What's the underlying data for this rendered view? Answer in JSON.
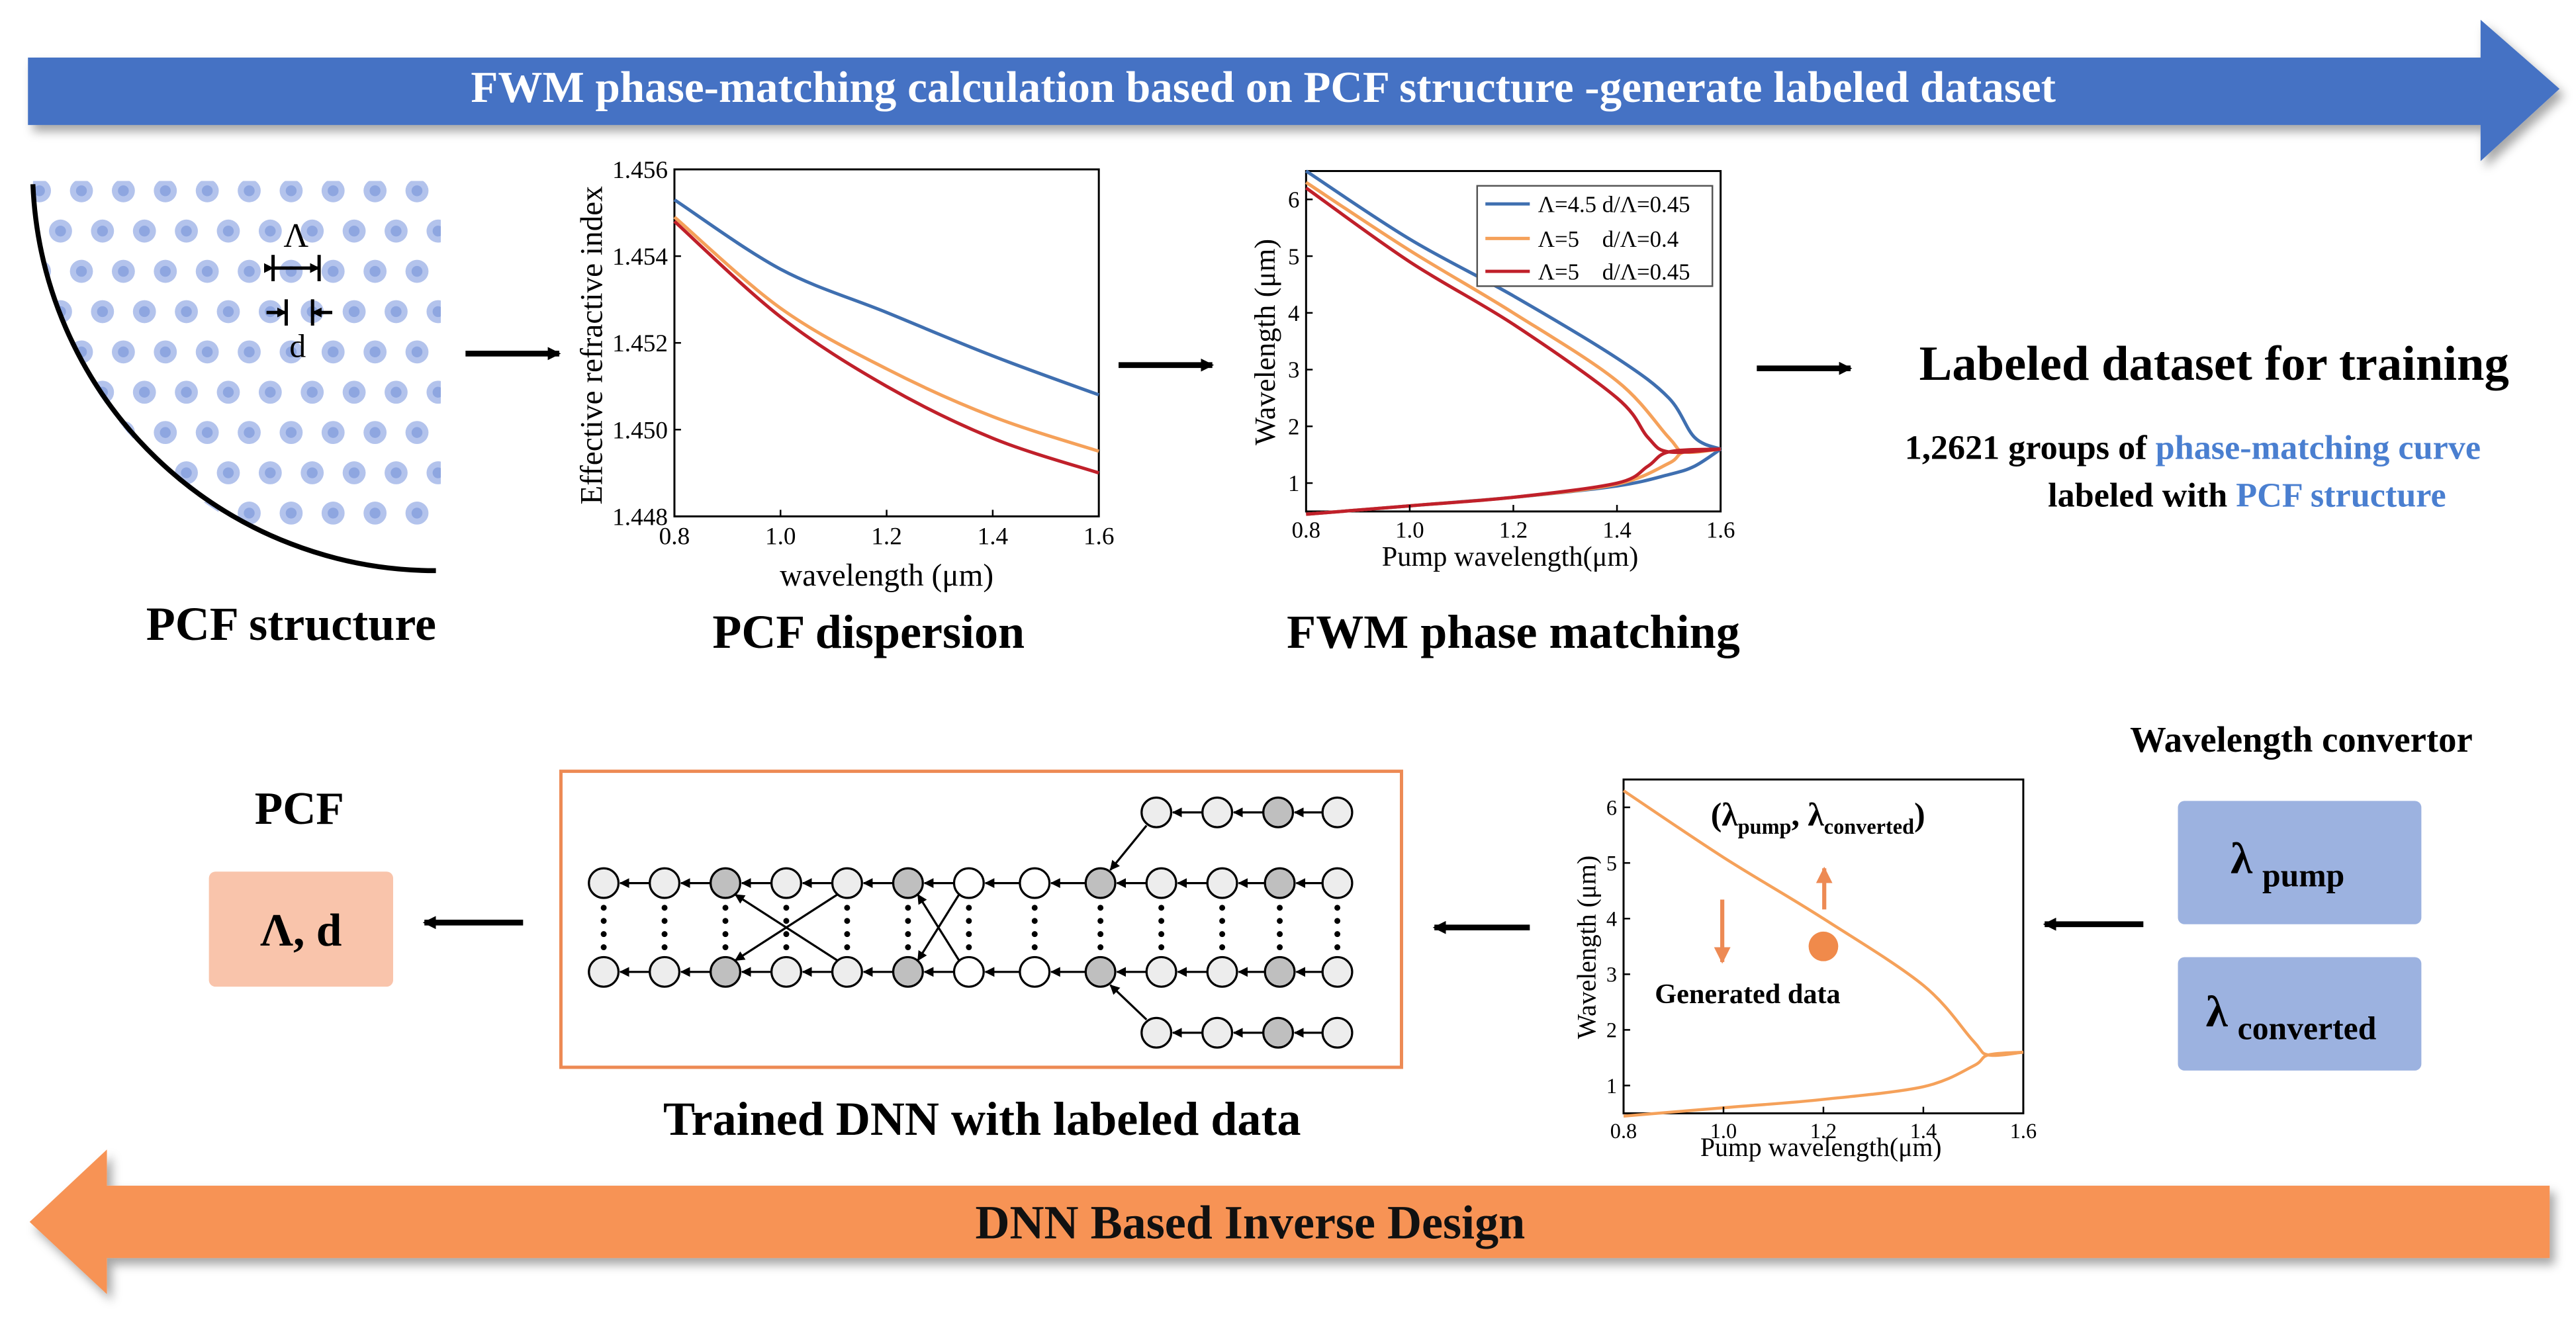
{
  "banners": {
    "top": "FWM phase-matching calculation based on PCF structure -generate labeled dataset",
    "bottom": "DNN Based Inverse Design"
  },
  "pcf_structure": {
    "caption": "PCF structure",
    "pitch_label": "Λ",
    "diameter_label": "d"
  },
  "chart_data": [
    {
      "id": "pcf-dispersion",
      "type": "line",
      "caption": "PCF dispersion",
      "xlabel": "wavelength (μm)",
      "ylabel": "Effective refractive index",
      "xlim": [
        0.8,
        1.6
      ],
      "ylim": [
        1.448,
        1.456
      ],
      "xticks": [
        "0.8",
        "1.0",
        "1.2",
        "1.4",
        "1.6"
      ],
      "yticks": [
        "1.448",
        "1.450",
        "1.452",
        "1.454",
        "1.456"
      ],
      "series": [
        {
          "name": "Λ=4.5 d/Λ=0.45",
          "color": "#3f6fb0",
          "points": [
            [
              0.8,
              1.4553
            ],
            [
              1.0,
              1.4537
            ],
            [
              1.2,
              1.4527
            ],
            [
              1.4,
              1.4517
            ],
            [
              1.6,
              1.4508
            ]
          ]
        },
        {
          "name": "Λ=5 d/Λ=0.4",
          "color": "#f5a15a",
          "points": [
            [
              0.8,
              1.4549
            ],
            [
              1.0,
              1.4528
            ],
            [
              1.2,
              1.4514
            ],
            [
              1.4,
              1.4503
            ],
            [
              1.6,
              1.4495
            ]
          ]
        },
        {
          "name": "Λ=5 d/Λ=0.45",
          "color": "#c0202a",
          "points": [
            [
              0.8,
              1.4548
            ],
            [
              1.0,
              1.4526
            ],
            [
              1.2,
              1.451
            ],
            [
              1.4,
              1.4498
            ],
            [
              1.6,
              1.449
            ]
          ]
        }
      ]
    },
    {
      "id": "fwm-phase-matching",
      "type": "line",
      "caption": "FWM phase matching",
      "xlabel": "Pump wavelength(μm)",
      "ylabel": "Wavelength (μm)",
      "xlim": [
        0.8,
        1.6
      ],
      "ylim": [
        0.5,
        6.5
      ],
      "xticks": [
        "0.8",
        "1.0",
        "1.2",
        "1.4",
        "1.6"
      ],
      "yticks": [
        "1",
        "2",
        "3",
        "4",
        "5",
        "6"
      ],
      "legend": [
        "Λ=4.5 d/Λ=0.45",
        "Λ=5    d/Λ=0.4",
        "Λ=5    d/Λ=0.45"
      ],
      "series": [
        {
          "name": "Λ=4.5 d/Λ=0.45",
          "color": "#3f6fb0",
          "upper": [
            [
              0.8,
              6.5
            ],
            [
              1.0,
              5.3
            ],
            [
              1.2,
              4.3
            ],
            [
              1.4,
              3.2
            ],
            [
              1.5,
              2.5
            ],
            [
              1.55,
              1.8
            ],
            [
              1.6,
              1.6
            ]
          ],
          "lower": [
            [
              0.8,
              0.45
            ],
            [
              1.0,
              0.6
            ],
            [
              1.2,
              0.75
            ],
            [
              1.4,
              0.95
            ],
            [
              1.5,
              1.15
            ],
            [
              1.55,
              1.3
            ],
            [
              1.6,
              1.6
            ]
          ]
        },
        {
          "name": "Λ=5 d/Λ=0.4",
          "color": "#f5a15a",
          "upper": [
            [
              0.8,
              6.3
            ],
            [
              1.0,
              5.1
            ],
            [
              1.2,
              4.0
            ],
            [
              1.4,
              2.8
            ],
            [
              1.5,
              1.8
            ],
            [
              1.53,
              1.55
            ],
            [
              1.6,
              1.6
            ]
          ],
          "lower": [
            [
              0.8,
              0.45
            ],
            [
              1.0,
              0.6
            ],
            [
              1.2,
              0.75
            ],
            [
              1.4,
              0.98
            ],
            [
              1.5,
              1.35
            ],
            [
              1.53,
              1.55
            ],
            [
              1.6,
              1.6
            ]
          ]
        },
        {
          "name": "Λ=5 d/Λ=0.45",
          "color": "#c0202a",
          "upper": [
            [
              0.8,
              6.2
            ],
            [
              1.0,
              4.9
            ],
            [
              1.2,
              3.8
            ],
            [
              1.4,
              2.5
            ],
            [
              1.46,
              1.8
            ],
            [
              1.5,
              1.55
            ],
            [
              1.6,
              1.6
            ]
          ],
          "lower": [
            [
              0.8,
              0.45
            ],
            [
              1.0,
              0.6
            ],
            [
              1.2,
              0.75
            ],
            [
              1.4,
              1.0
            ],
            [
              1.46,
              1.3
            ],
            [
              1.5,
              1.55
            ],
            [
              1.6,
              1.6
            ]
          ]
        }
      ]
    },
    {
      "id": "converter-curve",
      "type": "line",
      "xlabel": "Pump wavelength(μm)",
      "ylabel": "Wavelength (μm)",
      "xlim": [
        0.8,
        1.6
      ],
      "ylim": [
        0.5,
        6.5
      ],
      "xticks": [
        "0.8",
        "1.0",
        "1.2",
        "1.4",
        "1.6"
      ],
      "yticks": [
        "1",
        "2",
        "3",
        "4",
        "5",
        "6"
      ],
      "color": "#f5a15a",
      "upper": [
        [
          0.8,
          6.3
        ],
        [
          1.0,
          5.1
        ],
        [
          1.2,
          4.0
        ],
        [
          1.4,
          2.8
        ],
        [
          1.5,
          1.8
        ],
        [
          1.53,
          1.55
        ],
        [
          1.6,
          1.6
        ]
      ],
      "lower": [
        [
          0.8,
          0.45
        ],
        [
          1.0,
          0.6
        ],
        [
          1.2,
          0.75
        ],
        [
          1.4,
          0.98
        ],
        [
          1.5,
          1.35
        ],
        [
          1.53,
          1.55
        ],
        [
          1.6,
          1.6
        ]
      ],
      "highlight_point": [
        1.2,
        3.5
      ],
      "point_label": "(λpump, λconverted)",
      "point_label_parts": {
        "open": "(λ",
        "sub1": "pump",
        "mid": ", λ",
        "sub2": "converted",
        "close": ")"
      },
      "generated_label": "Generated data"
    }
  ],
  "dataset": {
    "title": "Labeled dataset for training",
    "line1_prefix": "1,2621 groups of ",
    "line1_highlight": "phase-matching curve",
    "line2_prefix": "labeled with ",
    "line2_highlight": "PCF structure"
  },
  "dnn": {
    "caption": "Trained DNN with labeled data"
  },
  "converter": {
    "title": "Wavelength convertor",
    "pump_symbol": "λ",
    "pump_sub": "pump",
    "converted_symbol": "λ",
    "converted_sub": "converted"
  },
  "pcf_output": {
    "title": "PCF",
    "params": "Λ, d"
  },
  "colors": {
    "top_banner": "#4472c4",
    "bottom_banner": "#f79355",
    "highlight_text": "#4a7fd0",
    "dnn_border": "#ed8a54",
    "param_box": "#f9c4ab",
    "lambda_box": "#9cb2e0",
    "gray_node": "#bfbfbf",
    "light_node": "#ededed"
  }
}
